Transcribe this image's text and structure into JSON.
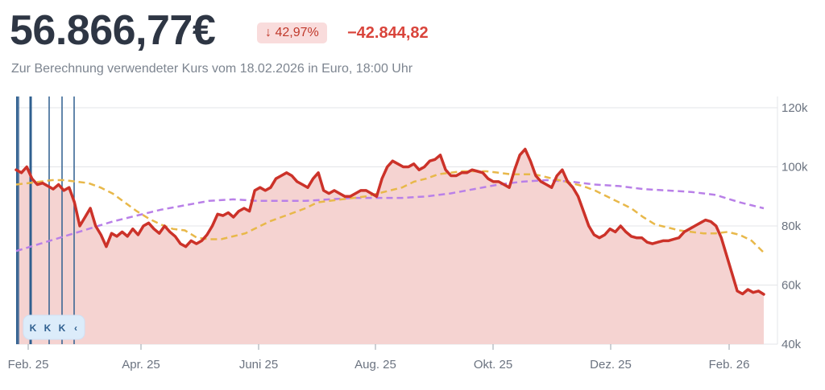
{
  "header": {
    "price": "56.866,77€",
    "change_percent": "↓ 42,97%",
    "change_abs": "−42.844,82",
    "subtitle": "Zur Berechnung verwendeter Kurs vom 18.02.2026 in Euro, 18:00 Uhr"
  },
  "colors": {
    "price_line": "#cc3229",
    "area_fill": "#f5d3d1",
    "ma_short": "#e8b84a",
    "ma_long": "#b980e8",
    "event_marker": "#2f5f8f"
  },
  "event_markers": {
    "labels": [
      "K",
      "K",
      "K",
      "K",
      "‹"
    ]
  },
  "chart_data": {
    "type": "line",
    "y_ticks": [
      "120k",
      "100k",
      "80k",
      "60k",
      "40k"
    ],
    "x_ticks": [
      "Feb. 25",
      "Apr. 25",
      "Juni 25",
      "Aug. 25",
      "Okt. 25",
      "Dez. 25",
      "Feb. 26"
    ],
    "ylim": [
      40000,
      120000
    ],
    "grid": true,
    "series": [
      {
        "role": "price",
        "values": [
          99000,
          98000,
          100000,
          96000,
          94000,
          94500,
          93500,
          92500,
          94000,
          92000,
          93000,
          88000,
          80000,
          83000,
          86000,
          80000,
          77000,
          73000,
          77500,
          76500,
          78000,
          76500,
          79000,
          77000,
          80000,
          81000,
          79000,
          77500,
          80000,
          78000,
          76500,
          74000,
          73000,
          75000,
          74000,
          75000,
          77000,
          80000,
          84000,
          83500,
          84500,
          83000,
          85000,
          86000,
          85000,
          92000,
          93000,
          92000,
          93000,
          96000,
          97000,
          98000,
          97000,
          95000,
          94000,
          93000,
          96000,
          98000,
          92000,
          91000,
          92000,
          91000,
          90000,
          90000,
          91000,
          92000,
          92000,
          91000,
          90000,
          96000,
          100000,
          102000,
          101000,
          100000,
          100000,
          101000,
          99000,
          100000,
          102000,
          102500,
          104000,
          99000,
          97000,
          97000,
          98000,
          98000,
          99000,
          98500,
          98000,
          96000,
          95000,
          95000,
          94000,
          93000,
          99000,
          104000,
          106000,
          102000,
          97000,
          95000,
          94000,
          93000,
          97000,
          99000,
          95000,
          93000,
          90000,
          85000,
          80000,
          77000,
          76000,
          77000,
          79000,
          78000,
          80000,
          78000,
          76500,
          76000,
          76000,
          74500,
          74000,
          74500,
          75000,
          75000,
          75500,
          76000,
          78000,
          79000,
          80000,
          81000,
          82000,
          81500,
          80000,
          76000,
          70000,
          64000,
          58000,
          57000,
          58500,
          57500,
          58000,
          56867
        ]
      },
      {
        "role": "moving-average-short",
        "values": [
          94000,
          94500,
          95000,
          95500,
          95500,
          95000,
          94500,
          93000,
          91000,
          88000,
          85000,
          82500,
          80500,
          79000,
          78500,
          76000,
          75500,
          75500,
          76500,
          77500,
          79500,
          81500,
          83000,
          84500,
          86000,
          88000,
          88500,
          89000,
          89500,
          90000,
          91000,
          92000,
          93000,
          95000,
          96000,
          97500,
          98000,
          98500,
          98500,
          98500,
          98000,
          97500,
          97500,
          97500,
          96500,
          95500,
          94500,
          93500,
          92000,
          90000,
          88000,
          86000,
          83000,
          80500,
          79500,
          78500,
          78000,
          77500,
          77500,
          78000,
          77000,
          75000,
          71000
        ]
      },
      {
        "role": "moving-average-long",
        "values": [
          71500,
          74000,
          76500,
          79000,
          81500,
          83500,
          85500,
          87000,
          88500,
          89000,
          88500,
          88500,
          88500,
          89000,
          89500,
          89500,
          89500,
          90000,
          91000,
          92500,
          94000,
          95000,
          95500,
          95000,
          94000,
          93500,
          92500,
          92000,
          91500,
          90500,
          88000,
          86000
        ]
      }
    ]
  }
}
